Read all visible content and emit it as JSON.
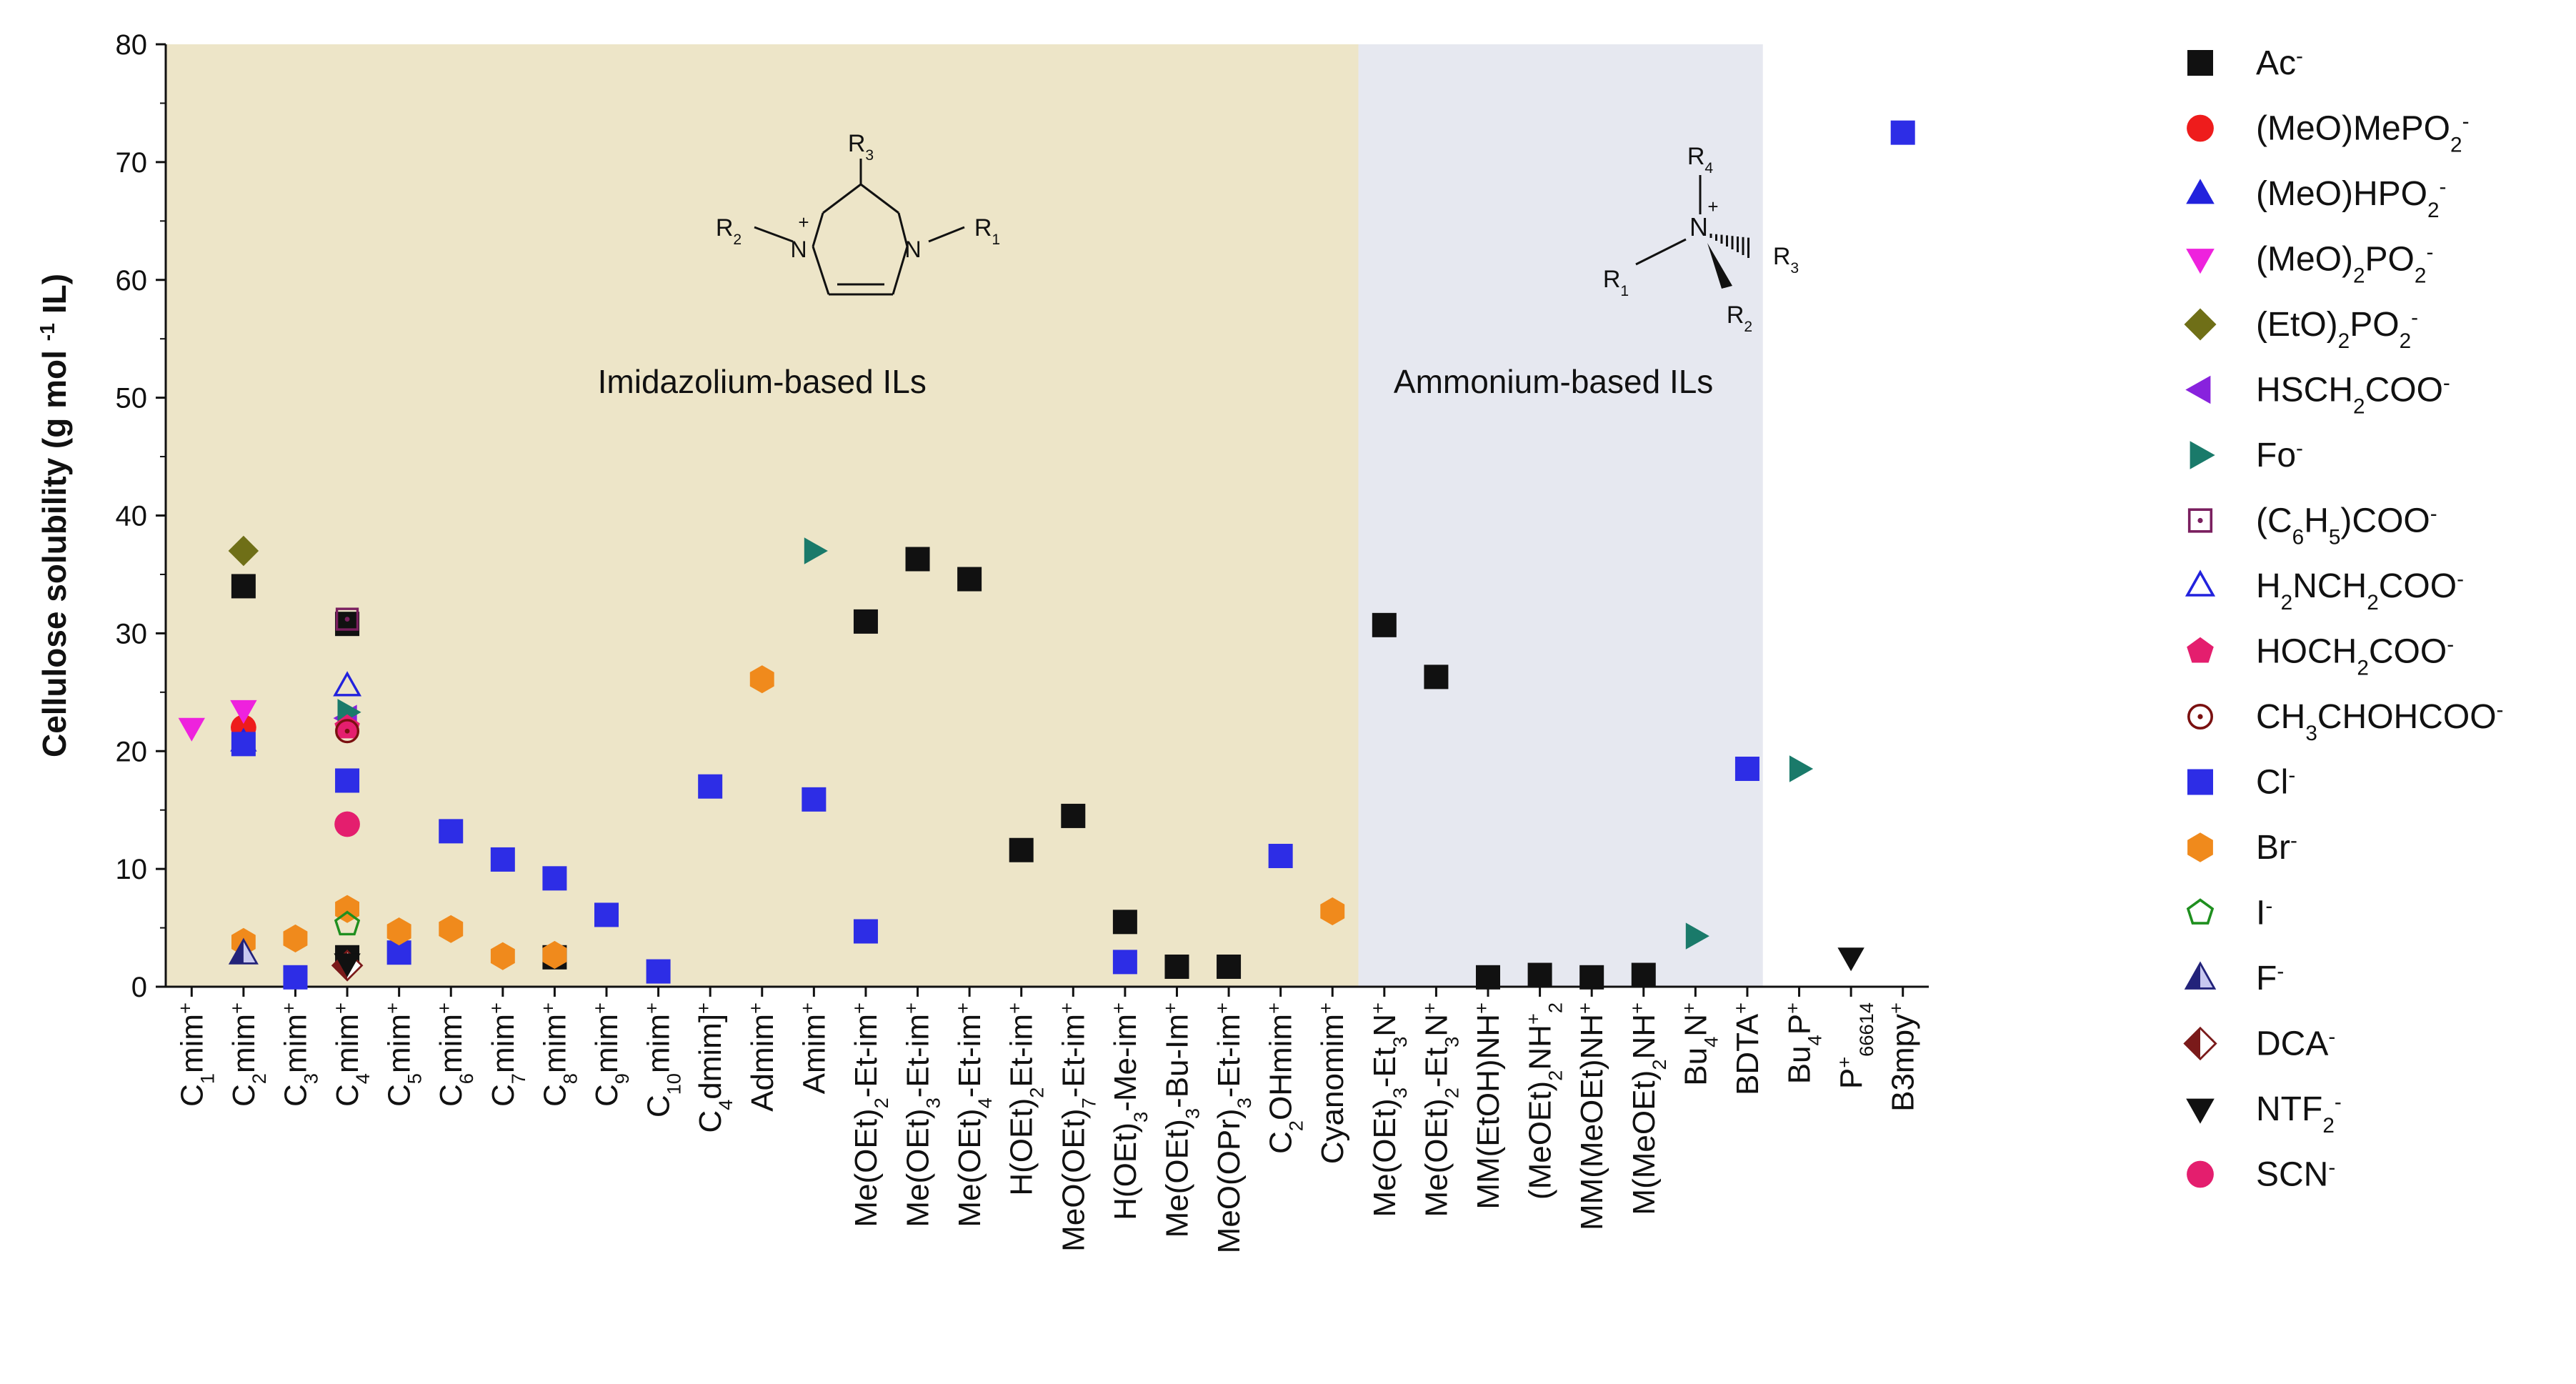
{
  "chart_data": {
    "type": "scatter",
    "title": "",
    "xlabel": "",
    "ylabel": "Cellulose solubility (g mol -1 IL)",
    "ylim": [
      0,
      80
    ],
    "yticks": [
      0,
      10,
      20,
      30,
      40,
      50,
      60,
      70,
      80
    ],
    "grid": false,
    "legend_position": "right",
    "categories": [
      [
        "C",
        "1",
        "mim",
        "+"
      ],
      [
        "C",
        "2",
        "mim",
        "+"
      ],
      [
        "C",
        "3",
        "mim",
        "+"
      ],
      [
        "C",
        "4",
        "mim",
        "+"
      ],
      [
        "C",
        "5",
        "mim",
        "+"
      ],
      [
        "C",
        "6",
        "mim",
        "+"
      ],
      [
        "C",
        "7",
        "mim",
        "+"
      ],
      [
        "C",
        "8",
        "mim",
        "+"
      ],
      [
        "C",
        "9",
        "mim",
        "+"
      ],
      [
        "C",
        "10",
        "mim",
        "+"
      ],
      [
        "C",
        "4",
        "dmim]",
        "+"
      ],
      [
        "Admim",
        "",
        "",
        "+"
      ],
      [
        "Amim",
        "",
        "",
        "+"
      ],
      [
        "Me(OEt)",
        "2",
        "-Et-im",
        "+"
      ],
      [
        "Me(OEt)",
        "3",
        "-Et-im",
        "+"
      ],
      [
        "Me(OEt)",
        "4",
        "-Et-im",
        "+"
      ],
      [
        "H(OEt)",
        "2",
        "Et-im",
        "+"
      ],
      [
        "MeO(OEt)",
        "7",
        "-Et-im",
        "+"
      ],
      [
        "H(OEt)",
        "3",
        "-Me-im",
        "+"
      ],
      [
        "Me(OEt)",
        "3",
        "-Bu-Im",
        "+"
      ],
      [
        "MeO(OPr)",
        "3",
        "-Et-im",
        "+"
      ],
      [
        "C",
        "2",
        "OHmim",
        "+"
      ],
      [
        "Cyanomim",
        "",
        "",
        "+"
      ],
      [
        "Me(OEt)",
        "3",
        "-Et",
        "3",
        "N",
        "+"
      ],
      [
        "Me(OEt)",
        "2",
        "-Et",
        "3",
        "N",
        "+"
      ],
      [
        "MM(EtOH)NH",
        "",
        "",
        "+"
      ],
      [
        "(MeOEt)",
        "2",
        "NH",
        "+",
        " ",
        "2"
      ],
      [
        "MM(MeOEt)NH",
        "",
        "",
        "+"
      ],
      [
        "M(MeOEt)",
        "2",
        "NH",
        "+"
      ],
      [
        "Bu",
        "4",
        "N",
        "+"
      ],
      [
        "BDTA",
        "",
        "",
        "+"
      ],
      [
        "Bu",
        "4",
        "P",
        "+"
      ],
      [
        "P",
        "+",
        "66614",
        ""
      ],
      [
        "B3mpy",
        "",
        "",
        "+"
      ]
    ],
    "series": [
      {
        "name": [
          "Ac",
          "-"
        ],
        "marker": "square",
        "color": "#111111",
        "filled": true,
        "points": [
          [
            1,
            34.0
          ],
          [
            3,
            30.8
          ],
          [
            3,
            2.5
          ],
          [
            7,
            2.5
          ],
          [
            13,
            31.0
          ],
          [
            14,
            36.3
          ],
          [
            15,
            34.6
          ],
          [
            16,
            11.6
          ],
          [
            17,
            14.5
          ],
          [
            18,
            5.5
          ],
          [
            19,
            1.7
          ],
          [
            20,
            1.7
          ],
          [
            23,
            30.7
          ],
          [
            24,
            26.3
          ],
          [
            25,
            0.8
          ],
          [
            26,
            1.0
          ],
          [
            27,
            0.8
          ],
          [
            28,
            1.0
          ]
        ]
      },
      {
        "name": [
          "(MeO)MePO",
          "2",
          "-"
        ],
        "marker": "circle",
        "color": "#ee1c1c",
        "filled": true,
        "points": [
          [
            1,
            22.0
          ]
        ]
      },
      {
        "name": [
          "(MeO)HPO",
          "2",
          "-"
        ],
        "marker": "triangle-up",
        "color": "#2222dd",
        "filled": true,
        "points": [
          [
            1,
            20.8
          ]
        ]
      },
      {
        "name": [
          "(MeO)",
          "2",
          "PO",
          "2",
          "-"
        ],
        "marker": "triangle-down",
        "color": "#ee22dd",
        "filled": true,
        "points": [
          [
            0,
            22.0
          ],
          [
            1,
            23.5
          ]
        ]
      },
      {
        "name": [
          "(EtO)",
          "2",
          "PO",
          "2",
          "-"
        ],
        "marker": "diamond",
        "color": "#6f6f17",
        "filled": true,
        "points": [
          [
            1,
            37.0
          ]
        ]
      },
      {
        "name": [
          "HSCH",
          "2",
          "COO",
          "-"
        ],
        "marker": "triangle-left",
        "color": "#8822dd",
        "filled": true,
        "points": [
          [
            3,
            22.8
          ]
        ]
      },
      {
        "name": [
          "Fo",
          "-"
        ],
        "marker": "triangle-right",
        "color": "#1a7a6a",
        "filled": true,
        "points": [
          [
            3,
            23.3
          ],
          [
            12,
            37.0
          ],
          [
            29,
            4.3
          ],
          [
            31,
            18.5
          ]
        ]
      },
      {
        "name": [
          "(C",
          "6",
          "H",
          "5",
          ")COO",
          "-"
        ],
        "marker": "square-open-dot",
        "color": "#7a1f5f",
        "filled": false,
        "points": [
          [
            3,
            31.2
          ]
        ]
      },
      {
        "name": [
          "H",
          "2",
          "NCH",
          "2",
          "COO",
          "-"
        ],
        "marker": "triangle-up-open",
        "color": "#2222dd",
        "filled": false,
        "points": [
          [
            3,
            25.5
          ]
        ]
      },
      {
        "name": [
          "HOCH",
          "2",
          "COO",
          "-"
        ],
        "marker": "pentagon",
        "color": "#e41e6e",
        "filled": true,
        "points": [
          [
            3,
            22.0
          ]
        ]
      },
      {
        "name": [
          "CH",
          "3",
          "CHOHCOO",
          "-"
        ],
        "marker": "circle-open-dot",
        "color": "#7a1010",
        "filled": false,
        "points": [
          [
            3,
            21.7
          ]
        ]
      },
      {
        "name": [
          "Cl",
          "-"
        ],
        "marker": "square",
        "color": "#2d2de6",
        "filled": true,
        "points": [
          [
            1,
            20.6
          ],
          [
            2,
            0.8
          ],
          [
            3,
            17.5
          ],
          [
            4,
            2.9
          ],
          [
            5,
            13.2
          ],
          [
            6,
            10.8
          ],
          [
            7,
            9.2
          ],
          [
            8,
            6.1
          ],
          [
            9,
            1.3
          ],
          [
            10,
            17.0
          ],
          [
            12,
            15.9
          ],
          [
            13,
            4.7
          ],
          [
            18,
            2.1
          ],
          [
            21,
            11.1
          ],
          [
            30,
            18.5
          ],
          [
            33,
            72.5
          ]
        ]
      },
      {
        "name": [
          "Br",
          "-"
        ],
        "marker": "hexagon",
        "color": "#f08a1c",
        "filled": true,
        "points": [
          [
            1,
            3.8
          ],
          [
            2,
            4.1
          ],
          [
            3,
            6.6
          ],
          [
            4,
            4.7
          ],
          [
            5,
            4.9
          ],
          [
            6,
            2.6
          ],
          [
            7,
            2.7
          ],
          [
            11,
            26.1
          ],
          [
            22,
            6.4
          ]
        ]
      },
      {
        "name": [
          "I",
          "-"
        ],
        "marker": "pentagon-open",
        "color": "#1f8f1f",
        "filled": false,
        "points": [
          [
            3,
            5.3
          ]
        ]
      },
      {
        "name": [
          "F",
          "-"
        ],
        "marker": "triangle-up-bicolor",
        "color": "#23237a",
        "filled": true,
        "points": [
          [
            1,
            2.8
          ]
        ]
      },
      {
        "name": [
          "DCA",
          "-"
        ],
        "marker": "diamond-bicolor",
        "color": "#7a1a1a",
        "filled": true,
        "points": [
          [
            3,
            1.8
          ]
        ]
      },
      {
        "name": [
          "NTF",
          "2",
          "-"
        ],
        "marker": "triangle-down",
        "color": "#111111",
        "filled": true,
        "points": [
          [
            3,
            2.0
          ],
          [
            32,
            2.5
          ]
        ]
      },
      {
        "name": [
          "SCN",
          "-"
        ],
        "marker": "circle",
        "color": "#e41e6e",
        "filled": true,
        "points": [
          [
            3,
            13.8
          ]
        ]
      }
    ],
    "regions": [
      {
        "label": "Imidazolium-based ILs",
        "from": -0.5,
        "to": 22.5,
        "color": "#ede5c8"
      },
      {
        "label": "Ammonium-based ILs",
        "from": 22.5,
        "to": 30.3,
        "color": "#e6e8f0"
      }
    ],
    "structures": {
      "imidazolium": {
        "labels": [
          [
            "R",
            "3"
          ],
          [
            "R",
            "2"
          ],
          [
            "R",
            "1"
          ],
          [
            "N",
            ""
          ],
          [
            "N",
            ""
          ],
          [
            "+",
            ""
          ]
        ]
      },
      "ammonium": {
        "labels": [
          [
            "R",
            "4"
          ],
          [
            "R",
            "1"
          ],
          [
            "R",
            "3"
          ],
          [
            "R",
            "2"
          ],
          [
            "N",
            ""
          ],
          [
            "+",
            ""
          ]
        ]
      }
    }
  }
}
